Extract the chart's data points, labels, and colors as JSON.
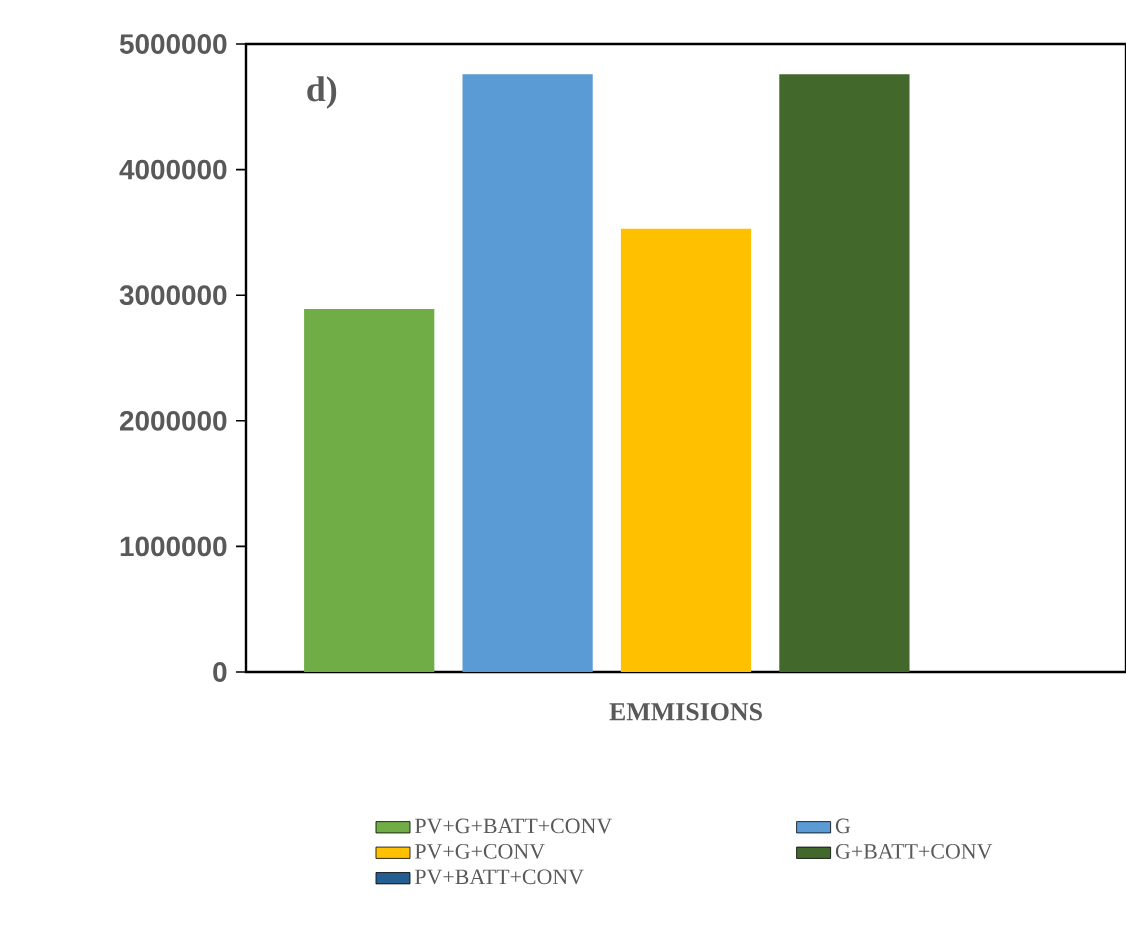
{
  "chart_data": {
    "type": "bar",
    "categories": [
      null
    ],
    "xlabel": "EMMISIONS",
    "series": [
      {
        "name": "PV+G+BATT+CONV",
        "color": "#70ad47",
        "values": [
          2890000
        ]
      },
      {
        "name": "G",
        "color": "#5b9bd5",
        "values": [
          4760000
        ]
      },
      {
        "name": "PV+G+CONV",
        "color": "#ffc000",
        "values": [
          3530000
        ]
      },
      {
        "name": "G+BATT+CONV",
        "color": "#43682b",
        "values": [
          4760000
        ]
      },
      {
        "name": "PV+BATT+CONV",
        "color": "#255e91",
        "values": [
          0
        ]
      }
    ],
    "ylim": [
      0,
      5000000
    ],
    "yticks": [
      {
        "value": 0,
        "label": "0"
      },
      {
        "value": 1000000,
        "label": "1000000"
      },
      {
        "value": 2000000,
        "label": "2000000"
      },
      {
        "value": 3000000,
        "label": "3000000"
      },
      {
        "value": 4000000,
        "label": "4000000"
      },
      {
        "value": 5000000,
        "label": "5000000"
      }
    ],
    "legend": "bottom",
    "annotations": [
      "d)"
    ]
  }
}
